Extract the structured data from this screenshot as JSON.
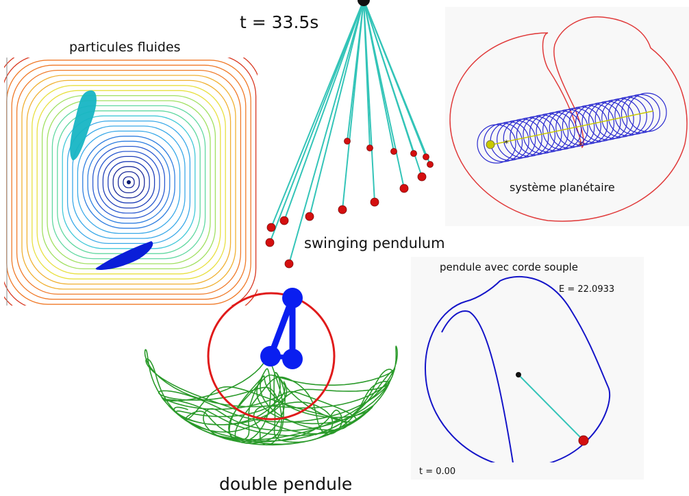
{
  "fluid": {
    "title": "particules fluides"
  },
  "pendulum_wave": {
    "time": "t = 33.5s",
    "title": "swinging pendulum"
  },
  "planetary": {
    "title": "système  planétaire"
  },
  "rope_pendulum": {
    "title": "pendule avec corde souple",
    "energy": "E = 22.0933",
    "time": "t =   0.00"
  },
  "double_pendulum": {
    "title": "double pendule"
  },
  "colors": {
    "pendulum_string": "#33c4b8",
    "bob_red": "#d40f0f",
    "orbit_red": "#e03a3a",
    "orbit_blue": "#2a2ad0",
    "trace_green": "#2a9a2a",
    "dp_blue": "#0a1ef0",
    "rope_blue": "#1414c8"
  }
}
